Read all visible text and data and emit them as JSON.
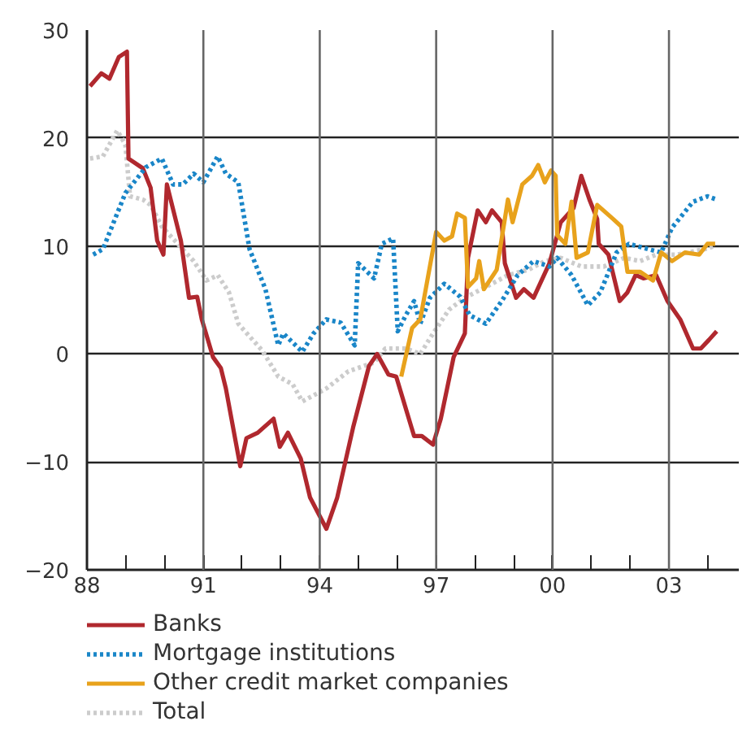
{
  "chart_data": {
    "type": "line",
    "xlim": [
      1988,
      2004.8
    ],
    "ylim": [
      -20,
      30
    ],
    "xticks": [
      {
        "value": 1988,
        "label": "88"
      },
      {
        "value": 1989,
        "label": null
      },
      {
        "value": 1990,
        "label": null
      },
      {
        "value": 1991,
        "label": "91"
      },
      {
        "value": 1992,
        "label": null
      },
      {
        "value": 1993,
        "label": null
      },
      {
        "value": 1994,
        "label": "94"
      },
      {
        "value": 1995,
        "label": null
      },
      {
        "value": 1996,
        "label": null
      },
      {
        "value": 1997,
        "label": "97"
      },
      {
        "value": 1998,
        "label": null
      },
      {
        "value": 1999,
        "label": null
      },
      {
        "value": 2000,
        "label": "00"
      },
      {
        "value": 2001,
        "label": null
      },
      {
        "value": 2002,
        "label": null
      },
      {
        "value": 2003,
        "label": "03"
      },
      {
        "value": 2004,
        "label": null
      }
    ],
    "yticks": [
      -20,
      -10,
      0,
      10,
      20,
      30
    ],
    "grid": "y",
    "legend": "bottom",
    "ref_lines": [
      {
        "axis": "x",
        "value": 1991,
        "color": "#666666"
      },
      {
        "axis": "x",
        "value": 1994,
        "color": "#666666"
      },
      {
        "axis": "x",
        "value": 1997,
        "color": "#666666"
      },
      {
        "axis": "x",
        "value": 2000,
        "color": "#666666"
      },
      {
        "axis": "x",
        "value": 2003,
        "color": "#666666"
      }
    ],
    "series": [
      {
        "name": "Total",
        "color": "#cccccc",
        "line_style": "dotted",
        "x": [
          1988.08,
          1988.41,
          1988.78,
          1988.99,
          1989.11,
          1989.44,
          1989.64,
          1989.93,
          1990.34,
          1990.75,
          1991.08,
          1991.37,
          1991.66,
          1991.9,
          1992.52,
          1992.93,
          1993.3,
          1993.55,
          1994.17,
          1994.74,
          1995.4,
          1995.69,
          1996.22,
          1996.59,
          1996.92,
          1997.33,
          1997.74,
          1998.28,
          1998.85,
          1999.38,
          1999.8,
          2000.21,
          2000.74,
          2001.32,
          2001.85,
          2002.26,
          2002.67,
          2003.21,
          2003.91,
          2004.19
        ],
        "values": [
          18.1,
          18.3,
          20.7,
          19.4,
          14.6,
          14.3,
          13.8,
          11.8,
          10.2,
          8.6,
          6.8,
          7.3,
          5.7,
          2.8,
          0.3,
          -2.1,
          -2.8,
          -4.4,
          -3.2,
          -1.6,
          -0.8,
          0.5,
          0.5,
          0,
          1.9,
          4.1,
          5.2,
          6.2,
          7.3,
          7.8,
          8.6,
          8.9,
          8.1,
          8.1,
          8.9,
          8.6,
          9.2,
          9.2,
          9.7,
          10
        ]
      },
      {
        "name": "Banks",
        "color": "#b0282e",
        "line_style": "solid",
        "x": [
          1988.08,
          1988.37,
          1988.58,
          1988.82,
          1989.03,
          1989.07,
          1989.44,
          1989.64,
          1989.81,
          1989.97,
          1990.06,
          1990.42,
          1990.63,
          1990.84,
          1990.96,
          1991.25,
          1991.45,
          1991.58,
          1991.95,
          1992.11,
          1992.4,
          1992.81,
          1992.97,
          1993.18,
          1993.51,
          1993.75,
          1994.17,
          1994.45,
          1994.86,
          1995.27,
          1995.48,
          1995.77,
          1995.97,
          1996.43,
          1996.63,
          1996.92,
          1997.12,
          1997.45,
          1997.74,
          1997.82,
          1998.07,
          1998.28,
          1998.44,
          1998.69,
          1998.77,
          1999.06,
          1999.26,
          1999.51,
          1999.92,
          2000.21,
          2000.54,
          2000.74,
          2000.95,
          2001.15,
          2001.19,
          2001.44,
          2001.73,
          2001.93,
          2002.14,
          2002.34,
          2002.67,
          2002.96,
          2003.29,
          2003.62,
          2003.82,
          2004.03,
          2004.23
        ],
        "values": [
          24.8,
          26,
          25.5,
          27.5,
          28,
          18.1,
          17.2,
          15.4,
          10.5,
          9.2,
          15.7,
          10.5,
          5.2,
          5.3,
          3.2,
          -0.3,
          -1.3,
          -3.2,
          -10.4,
          -7.8,
          -7.3,
          -6,
          -8.6,
          -7.3,
          -9.7,
          -13.3,
          -16.2,
          -13.3,
          -6.8,
          -1.1,
          0,
          -1.9,
          -2.1,
          -7.6,
          -7.6,
          -8.4,
          -6,
          -0.3,
          1.9,
          8.9,
          13.3,
          12.2,
          13.3,
          12.2,
          8.4,
          5.2,
          6,
          5.2,
          8.4,
          12.2,
          13.5,
          16.5,
          14.3,
          12.5,
          10.2,
          9.2,
          4.9,
          5.7,
          7.3,
          7,
          7.3,
          4.9,
          3.2,
          0.5,
          0.5,
          1.3,
          2.1
        ]
      },
      {
        "name": "Mortgage institutions",
        "color": "#1a86c8",
        "line_style": "dotted",
        "x": [
          1988.16,
          1988.41,
          1988.99,
          1989.52,
          1989.93,
          1990.22,
          1990.47,
          1990.75,
          1991.0,
          1991.37,
          1991.58,
          1991.9,
          1992.19,
          1992.6,
          1992.93,
          1993.06,
          1993.55,
          1993.84,
          1994.17,
          1994.54,
          1994.9,
          1994.99,
          1995.4,
          1995.6,
          1995.89,
          1996.01,
          1996.22,
          1996.43,
          1996.59,
          1996.84,
          1997.21,
          1997.62,
          1997.86,
          1998.28,
          1998.69,
          1999.1,
          1999.51,
          1999.92,
          2000.12,
          2000.49,
          2000.91,
          2001.23,
          2001.65,
          2001.97,
          2002.47,
          2002.8,
          2003.08,
          2003.62,
          2003.99,
          2004.23
        ],
        "values": [
          9.2,
          9.7,
          14.9,
          17.3,
          18.1,
          15.7,
          15.7,
          16.7,
          15.9,
          18.3,
          16.7,
          15.9,
          9.7,
          6,
          0.8,
          1.9,
          0.2,
          1.9,
          3.2,
          2.9,
          0.8,
          8.4,
          7,
          10.2,
          10.7,
          2.1,
          3.6,
          4.9,
          2.8,
          5.2,
          6.5,
          5.3,
          3.6,
          2.8,
          4.9,
          7.3,
          8.6,
          8.1,
          8.9,
          7.3,
          4.5,
          5.7,
          9.4,
          10.2,
          9.7,
          9.4,
          11.7,
          14.1,
          14.6,
          14.3
        ]
      },
      {
        "name": "Other credit market companies",
        "color": "#e8a21c",
        "line_style": "solid",
        "x": [
          1996.1,
          1996.38,
          1996.59,
          1997.0,
          1997.21,
          1997.41,
          1997.54,
          1997.74,
          1997.82,
          1998.03,
          1998.11,
          1998.23,
          1998.56,
          1998.85,
          1998.97,
          1999.22,
          1999.47,
          1999.63,
          1999.8,
          1999.96,
          2000.08,
          2000.12,
          2000.33,
          2000.49,
          2000.62,
          2000.91,
          2001.15,
          2001.56,
          2001.77,
          2001.93,
          2002.26,
          2002.59,
          2002.8,
          2003.08,
          2003.41,
          2003.78,
          2003.99,
          2004.19
        ],
        "values": [
          -2.1,
          2.4,
          3.2,
          11.3,
          10.5,
          10.9,
          13,
          12.6,
          6.2,
          7,
          8.6,
          6,
          7.8,
          14.3,
          12.2,
          15.7,
          16.5,
          17.5,
          15.9,
          17,
          16.5,
          11,
          10.2,
          14.1,
          8.9,
          9.4,
          13.8,
          12.5,
          11.8,
          7.6,
          7.6,
          6.8,
          9.4,
          8.6,
          9.4,
          9.2,
          10.2,
          10.2
        ]
      }
    ]
  }
}
